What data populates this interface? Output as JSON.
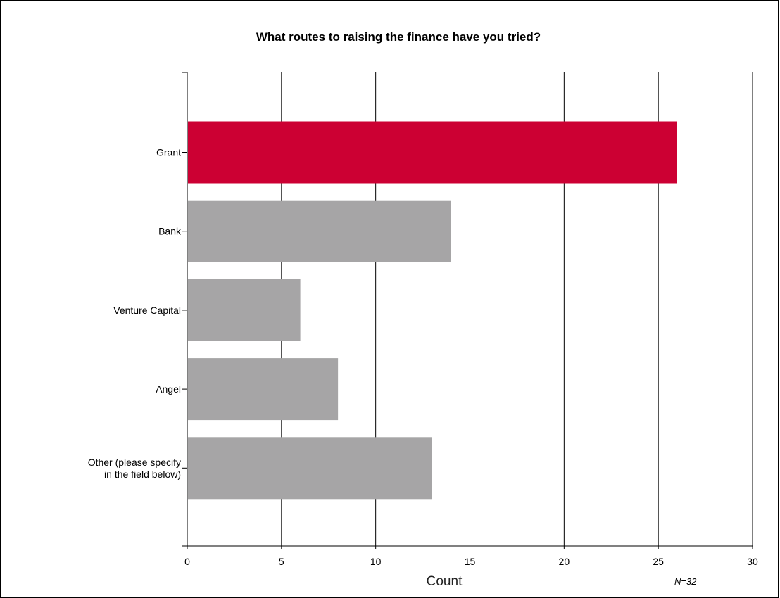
{
  "chart_data": {
    "type": "bar",
    "orientation": "horizontal",
    "title": "What routes to raising the finance have you tried?",
    "categories": [
      "Grant",
      "Bank",
      "Venture Capital",
      "Angel",
      "Other (please specify in the field below)"
    ],
    "category_lines": [
      [
        "Grant"
      ],
      [
        "Bank"
      ],
      [
        "Venture Capital"
      ],
      [
        "Angel"
      ],
      [
        "Other (please specify",
        "in the field below)"
      ]
    ],
    "values": [
      26,
      14,
      6,
      8,
      13
    ],
    "colors": [
      "#cc0033",
      "#a6a5a6",
      "#a6a5a6",
      "#a6a5a6",
      "#a6a5a6"
    ],
    "xlabel": "Count",
    "xlim": [
      0,
      30
    ],
    "xticks": [
      0,
      5,
      10,
      15,
      20,
      25,
      30
    ],
    "grid": true,
    "note": "N=32"
  }
}
